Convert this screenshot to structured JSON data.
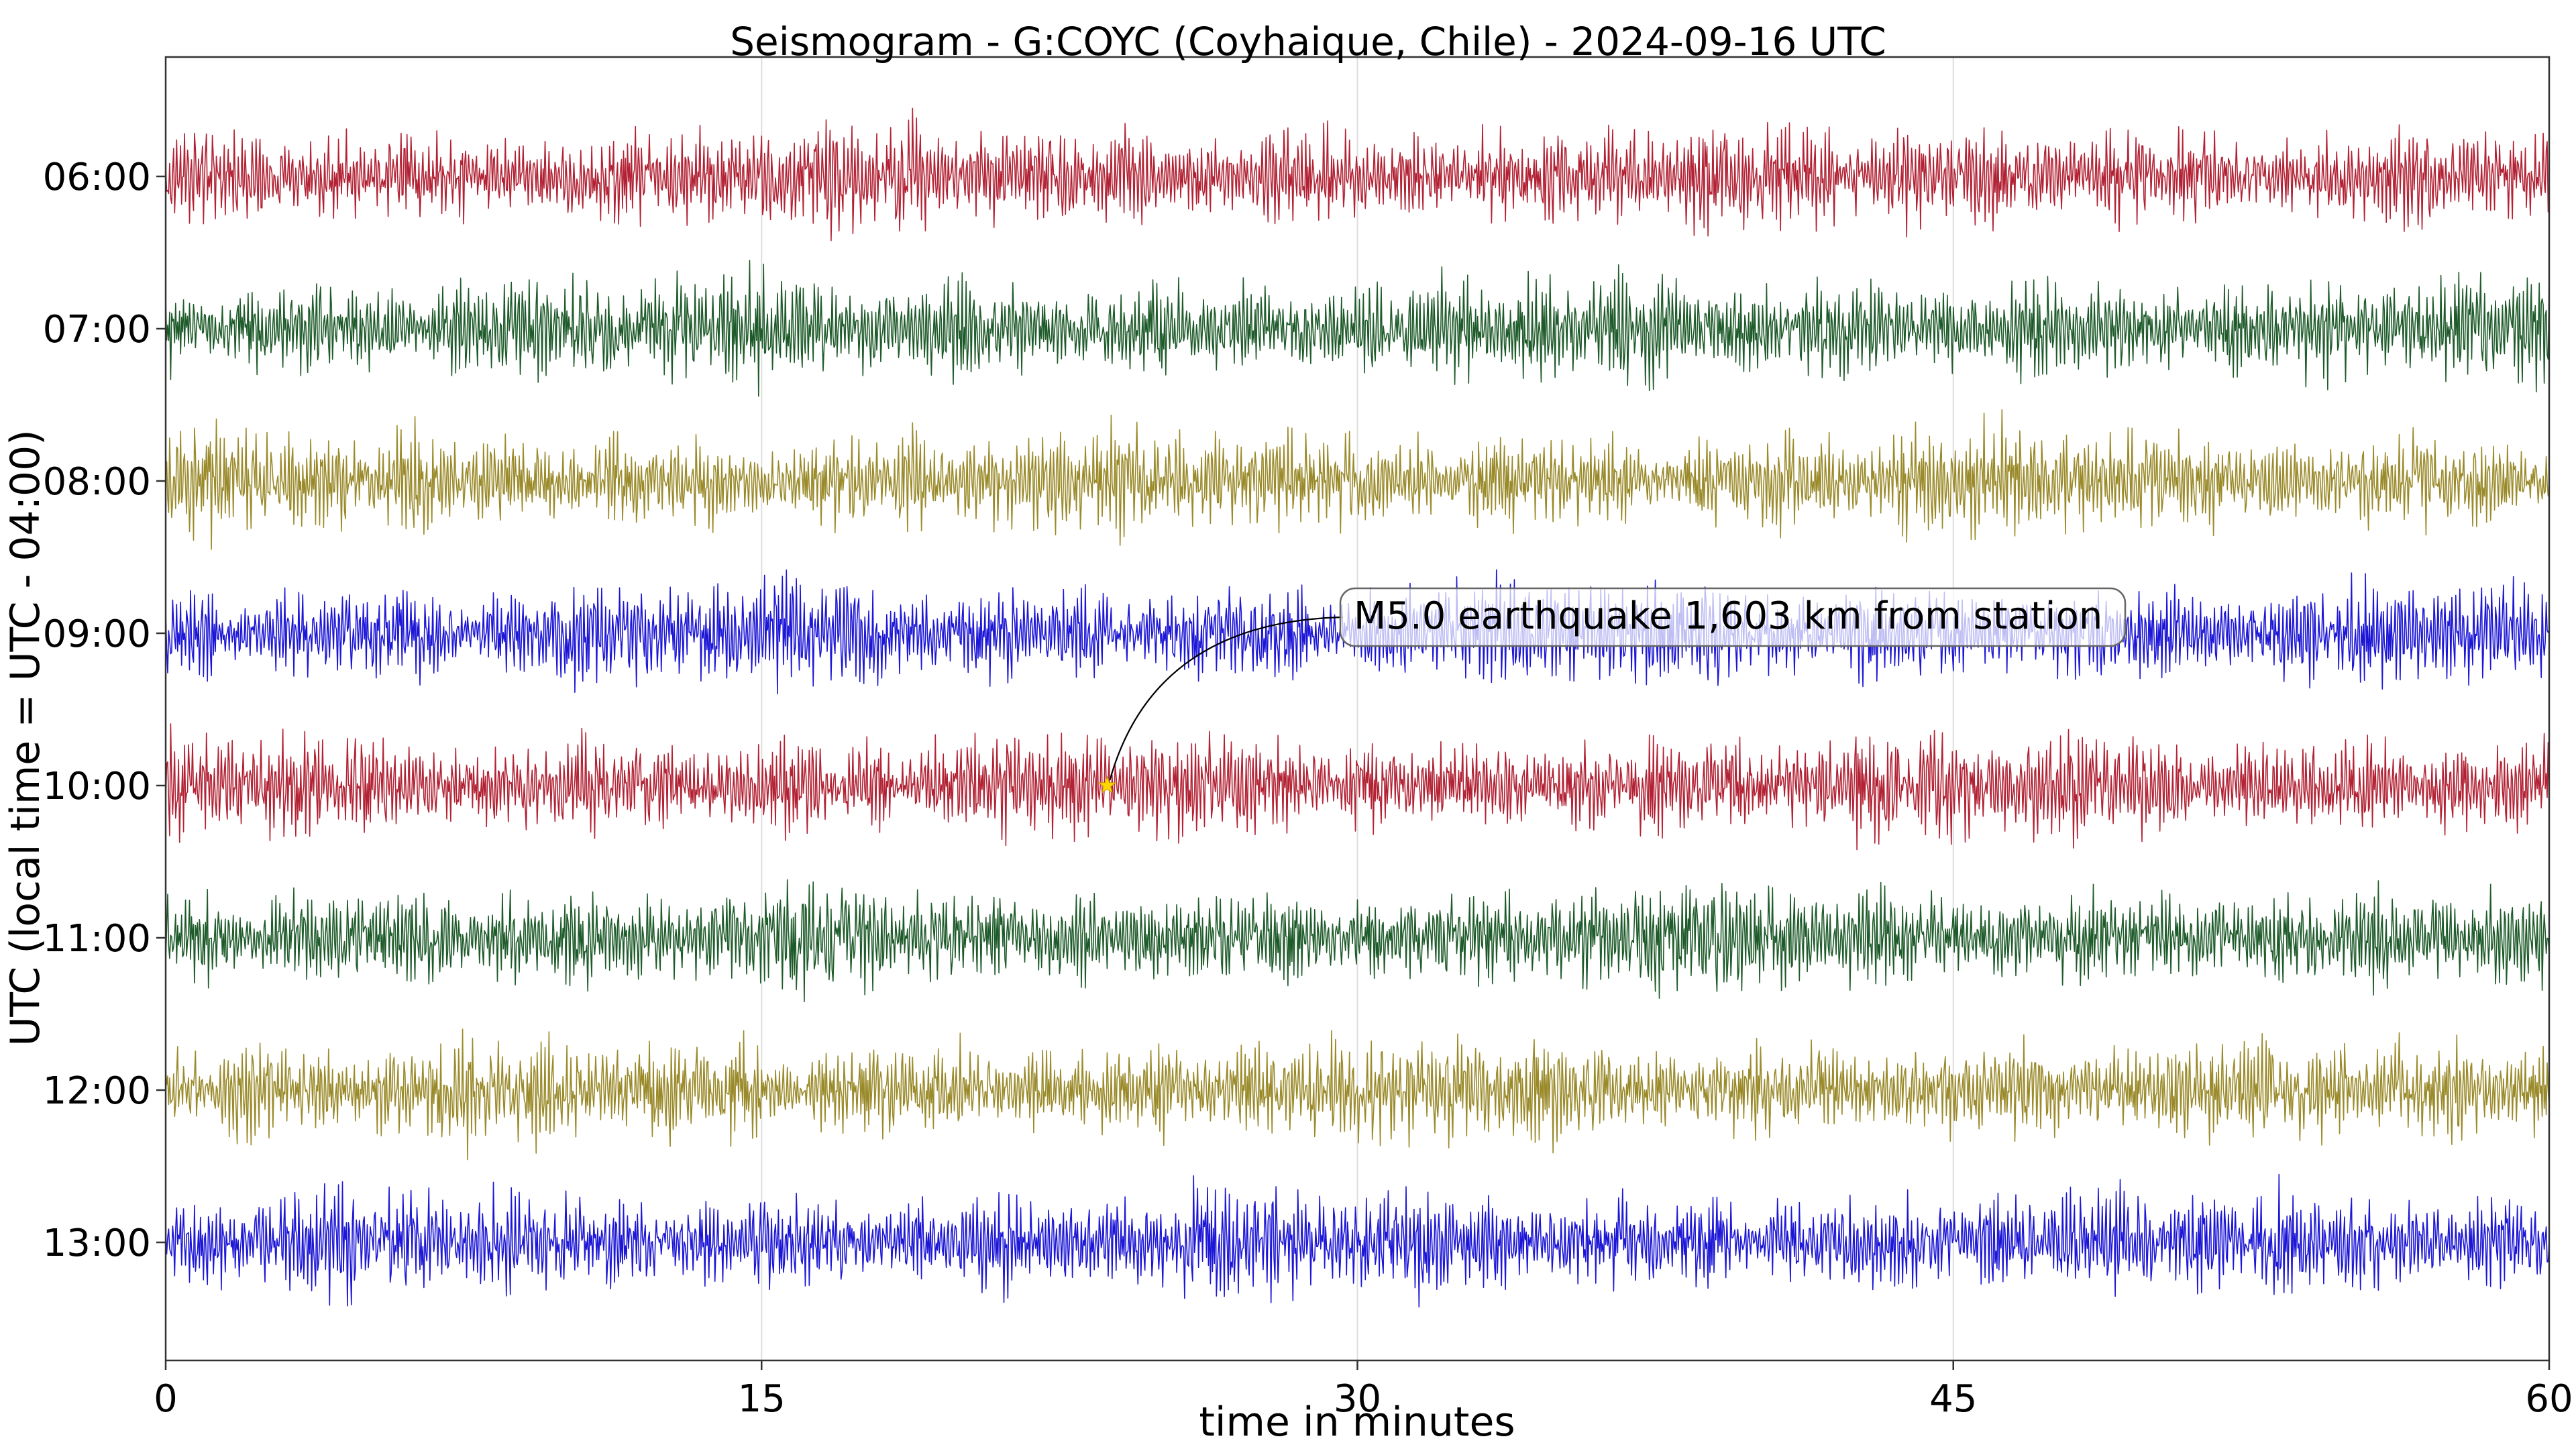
{
  "chart_data": {
    "type": "line",
    "title": "Seismogram - G:COYC (Coyhaique, Chile) - 2024-09-16 UTC",
    "xlabel": "time in minutes",
    "ylabel": "UTC (local time = UTC - 04:00)",
    "xlim": [
      0,
      60
    ],
    "x_ticks": [
      0,
      15,
      30,
      45,
      60
    ],
    "x_tick_labels": [
      "0",
      "15",
      "30",
      "45",
      "60"
    ],
    "grid": "vertical",
    "series": [
      {
        "name": "06:00",
        "color": "#b22234"
      },
      {
        "name": "07:00",
        "color": "#1e5b2a"
      },
      {
        "name": "08:00",
        "color": "#9a8a2a"
      },
      {
        "name": "09:00",
        "color": "#1c16d6"
      },
      {
        "name": "10:00",
        "color": "#b22234"
      },
      {
        "name": "11:00",
        "color": "#1e5b2a"
      },
      {
        "name": "12:00",
        "color": "#9a8a2a"
      },
      {
        "name": "13:00",
        "color": "#1c16d6"
      }
    ],
    "annotation": {
      "text": "M5.0 earthquake 1,603 km from station",
      "trace": "10:00",
      "minute": 23.7,
      "marker_color": "#ffd700"
    }
  }
}
